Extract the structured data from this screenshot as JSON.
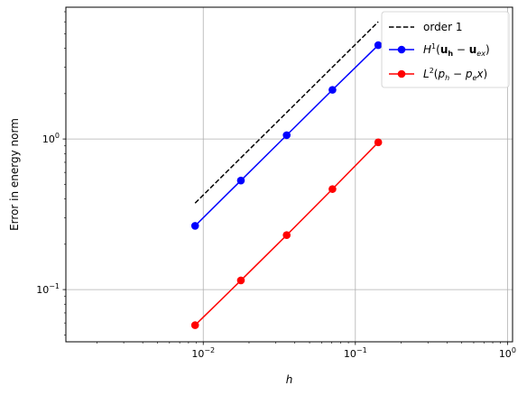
{
  "chart_data": {
    "type": "line",
    "xscale": "log",
    "yscale": "log",
    "xlabel": "h",
    "ylabel": "Error in energy norm",
    "xlim": [
      0.00125,
      1.08
    ],
    "ylim": [
      0.045,
      7.5
    ],
    "grid": true,
    "legend_position": "upper-right",
    "x_ticks": [
      {
        "value": 0.01,
        "base": "10",
        "exp": "−2"
      },
      {
        "value": 0.1,
        "base": "10",
        "exp": "−1"
      },
      {
        "value": 1,
        "base": "10",
        "exp": "0"
      }
    ],
    "y_ticks": [
      {
        "value": 0.1,
        "base": "10",
        "exp": "−1"
      },
      {
        "value": 1,
        "base": "10",
        "exp": "0"
      }
    ],
    "series": [
      {
        "name": "order 1",
        "color": "#000000",
        "dash": true,
        "marker": false,
        "x": [
          0.00884,
          0.1414
        ],
        "y": [
          0.375,
          6.0
        ]
      },
      {
        "name": "H^1(u_h − u_ex)",
        "color": "#0000ff",
        "dash": false,
        "marker": true,
        "x": [
          0.00884,
          0.01768,
          0.03536,
          0.07071,
          0.1414
        ],
        "y": [
          0.265,
          0.53,
          1.06,
          2.12,
          4.2
        ]
      },
      {
        "name": "L^2(p_h − p_e x)",
        "color": "#ff0000",
        "dash": false,
        "marker": true,
        "x": [
          0.00884,
          0.01768,
          0.03536,
          0.07071,
          0.1414
        ],
        "y": [
          0.058,
          0.115,
          0.23,
          0.465,
          0.95
        ]
      }
    ]
  }
}
